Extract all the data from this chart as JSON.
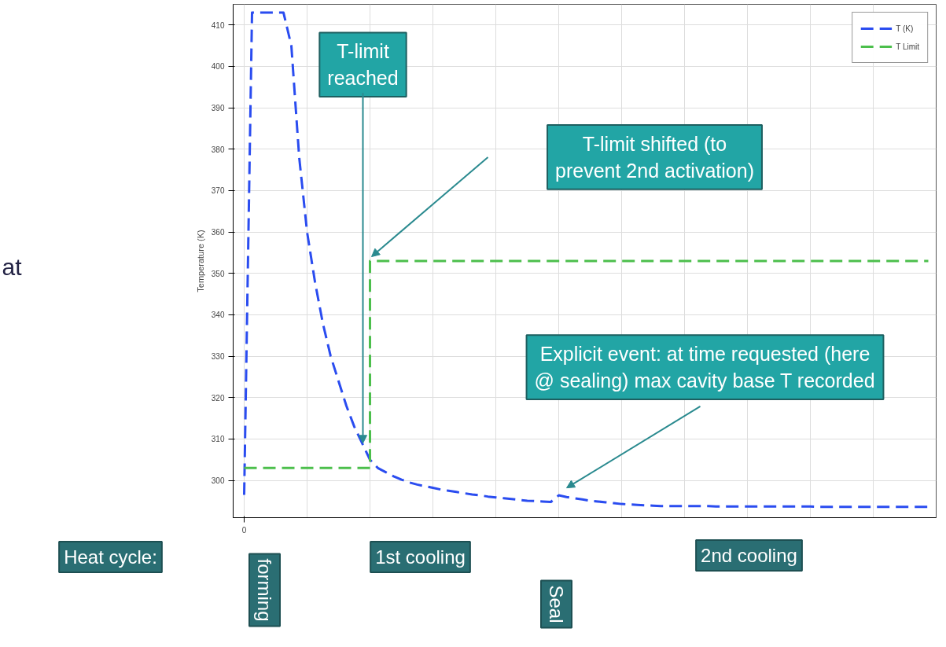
{
  "chart_data": {
    "type": "line",
    "ylabel": "Temperature (K)",
    "categories": [
      "0",
      null,
      null,
      null,
      null,
      null,
      null,
      null,
      null,
      null,
      null,
      null,
      null,
      null,
      null,
      null,
      null,
      null,
      null,
      null,
      null,
      null,
      null,
      null,
      null,
      null,
      null,
      null,
      null,
      null,
      null,
      null,
      null,
      null,
      null,
      null,
      null,
      null,
      null,
      null,
      null,
      null,
      null,
      null,
      null,
      null,
      null,
      null,
      null,
      null,
      null,
      null,
      null,
      null,
      null,
      null,
      null,
      null,
      null,
      null,
      null,
      null,
      null,
      null,
      null,
      null,
      null,
      null,
      null,
      null,
      null,
      null,
      null,
      null,
      null,
      null,
      null,
      null,
      null,
      null,
      null,
      null,
      null,
      null,
      null,
      null,
      null,
      null
    ],
    "series": [
      {
        "name": "T (K)",
        "color": "#2a4cf0",
        "values": [
          296.5,
          413,
          413,
          413,
          413,
          413,
          405,
          378,
          360,
          348,
          338,
          330,
          324,
          318,
          313,
          309,
          305,
          303,
          302,
          301,
          300.2,
          299.5,
          299,
          298.6,
          298.2,
          297.8,
          297.5,
          297.2,
          296.9,
          296.6,
          296.4,
          296.1,
          295.9,
          295.7,
          295.5,
          295.3,
          295.1,
          295.0,
          294.9,
          294.8,
          296.4,
          296.0,
          295.7,
          295.4,
          295.1,
          294.9,
          294.7,
          294.5,
          294.3,
          294.2,
          294.1,
          294.0,
          293.9,
          293.8,
          293.8,
          293.8,
          293.8,
          293.8,
          293.8,
          293.8,
          293.7,
          293.7,
          293.7,
          293.7,
          293.7,
          293.7,
          293.7,
          293.7,
          293.7,
          293.7,
          293.7,
          293.7,
          293.7,
          293.6,
          293.6,
          293.6,
          293.6,
          293.6,
          293.6,
          293.6,
          293.6,
          293.6,
          293.6,
          293.6,
          293.6,
          293.6,
          293.6,
          293.6
        ]
      },
      {
        "name": "T Limit",
        "color": "#4cbf4c",
        "type": "step",
        "values": [
          303,
          303,
          303,
          303,
          303,
          303,
          303,
          303,
          303,
          303,
          303,
          303,
          303,
          303,
          303,
          303,
          353,
          353,
          353,
          353,
          353,
          353,
          353,
          353,
          353,
          353,
          353,
          353,
          353,
          353,
          353,
          353,
          353,
          353,
          353,
          353,
          353,
          353,
          353,
          353,
          353,
          353,
          353,
          353,
          353,
          353,
          353,
          353,
          353,
          353,
          353,
          353,
          353,
          353,
          353,
          353,
          353,
          353,
          353,
          353,
          353,
          353,
          353,
          353,
          353,
          353,
          353,
          353,
          353,
          353,
          353,
          353,
          353,
          353,
          353,
          353,
          353,
          353,
          353,
          353,
          353,
          353,
          353,
          353,
          353,
          353,
          353,
          353
        ]
      }
    ],
    "ylim": [
      291,
      415
    ],
    "yticks": [
      300,
      310,
      320,
      330,
      340,
      350,
      360,
      370,
      380,
      390,
      400,
      410
    ],
    "grid": true,
    "legend": "top right",
    "line_style": "dashed",
    "marker": "none",
    "annotations": [
      "T-limit reached",
      "T-limit shifted (to prevent 2nd activation)",
      "Explicit event: at time requested (here @ sealing) max cavity base T recorded",
      "Heat cycle:",
      "forming",
      "1st cooling",
      "Seal",
      "2nd cooling",
      "at"
    ]
  }
}
